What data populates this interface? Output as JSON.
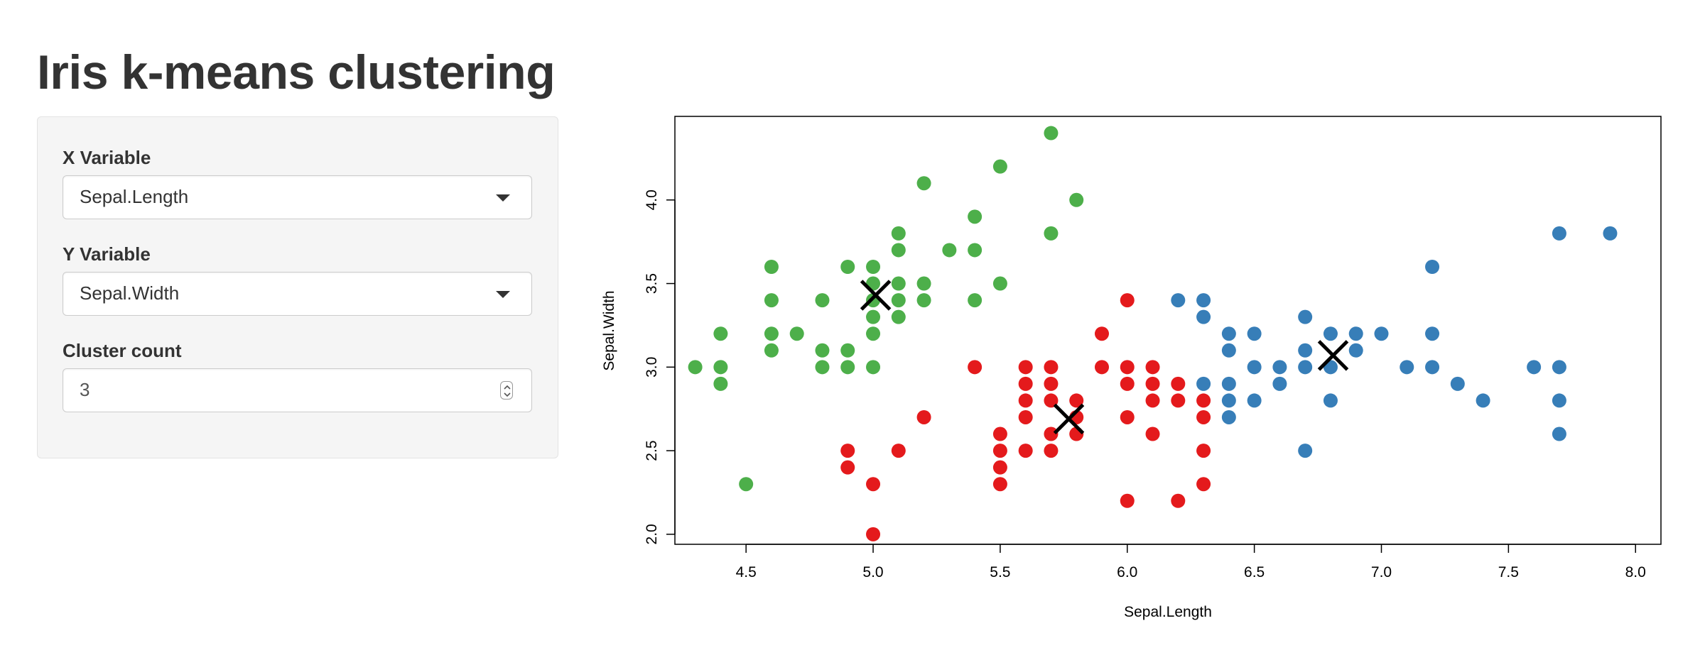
{
  "page": {
    "title": "Iris k-means clustering"
  },
  "sidebar": {
    "x_variable": {
      "label": "X Variable",
      "value": "Sepal.Length"
    },
    "y_variable": {
      "label": "Y Variable",
      "value": "Sepal.Width"
    },
    "cluster_count": {
      "label": "Cluster count",
      "value": "3"
    }
  },
  "colors": {
    "cluster_1": "#E41A1C",
    "cluster_2": "#377EB8",
    "cluster_3": "#4DAF4A",
    "centers": "#000000"
  },
  "icons": {
    "select_caret": "chevron-down-icon",
    "number_spinner": "spinner-icon"
  },
  "chart_data": {
    "type": "scatter",
    "xlabel": "Sepal.Length",
    "ylabel": "Sepal.Width",
    "xlim": [
      4.22,
      8.1
    ],
    "ylim": [
      1.94,
      4.5
    ],
    "x_ticks": [
      "4.5",
      "5.0",
      "5.5",
      "6.0",
      "6.5",
      "7.0",
      "7.5",
      "8.0"
    ],
    "y_ticks": [
      "2.0",
      "2.5",
      "3.0",
      "3.5",
      "4.0"
    ],
    "series": [
      {
        "color": "#E41A1C",
        "points": [
          [
            5.0,
            2.0
          ],
          [
            4.9,
            2.5
          ],
          [
            4.9,
            2.4
          ],
          [
            5.0,
            2.3
          ],
          [
            5.1,
            2.5
          ],
          [
            5.2,
            2.7
          ],
          [
            5.4,
            3.0
          ],
          [
            5.5,
            2.6
          ],
          [
            5.5,
            2.5
          ],
          [
            5.5,
            2.4
          ],
          [
            5.5,
            2.3
          ],
          [
            5.6,
            3.0
          ],
          [
            5.6,
            2.9
          ],
          [
            5.6,
            2.8
          ],
          [
            5.6,
            2.7
          ],
          [
            5.6,
            2.5
          ],
          [
            5.7,
            3.0
          ],
          [
            5.7,
            2.9
          ],
          [
            5.7,
            2.8
          ],
          [
            5.7,
            2.6
          ],
          [
            5.7,
            2.5
          ],
          [
            5.8,
            2.8
          ],
          [
            5.8,
            2.7
          ],
          [
            5.8,
            2.6
          ],
          [
            5.9,
            3.2
          ],
          [
            5.9,
            3.0
          ],
          [
            6.0,
            3.4
          ],
          [
            6.0,
            3.0
          ],
          [
            6.0,
            2.9
          ],
          [
            6.0,
            2.7
          ],
          [
            6.0,
            2.2
          ],
          [
            6.1,
            3.0
          ],
          [
            6.1,
            2.9
          ],
          [
            6.1,
            2.8
          ],
          [
            6.1,
            2.6
          ],
          [
            6.2,
            2.9
          ],
          [
            6.2,
            2.8
          ],
          [
            6.2,
            2.2
          ],
          [
            6.3,
            2.8
          ],
          [
            6.3,
            2.7
          ],
          [
            6.3,
            2.5
          ],
          [
            6.3,
            2.3
          ]
        ]
      },
      {
        "color": "#377EB8",
        "points": [
          [
            6.2,
            3.4
          ],
          [
            6.3,
            3.4
          ],
          [
            6.3,
            3.3
          ],
          [
            6.3,
            2.9
          ],
          [
            6.4,
            3.2
          ],
          [
            6.4,
            3.1
          ],
          [
            6.4,
            2.9
          ],
          [
            6.4,
            2.8
          ],
          [
            6.4,
            2.7
          ],
          [
            6.5,
            3.2
          ],
          [
            6.5,
            3.0
          ],
          [
            6.5,
            2.8
          ],
          [
            6.6,
            3.0
          ],
          [
            6.6,
            2.9
          ],
          [
            6.7,
            3.3
          ],
          [
            6.7,
            3.1
          ],
          [
            6.7,
            3.0
          ],
          [
            6.7,
            2.5
          ],
          [
            6.8,
            3.2
          ],
          [
            6.8,
            3.0
          ],
          [
            6.8,
            2.8
          ],
          [
            6.9,
            3.2
          ],
          [
            6.9,
            3.1
          ],
          [
            7.0,
            3.2
          ],
          [
            7.1,
            3.0
          ],
          [
            7.2,
            3.6
          ],
          [
            7.2,
            3.2
          ],
          [
            7.2,
            3.0
          ],
          [
            7.3,
            2.9
          ],
          [
            7.4,
            2.8
          ],
          [
            7.6,
            3.0
          ],
          [
            7.7,
            3.8
          ],
          [
            7.7,
            3.0
          ],
          [
            7.7,
            2.8
          ],
          [
            7.7,
            2.6
          ],
          [
            7.9,
            3.8
          ]
        ]
      },
      {
        "color": "#4DAF4A",
        "points": [
          [
            4.3,
            3.0
          ],
          [
            4.4,
            3.2
          ],
          [
            4.4,
            3.0
          ],
          [
            4.4,
            2.9
          ],
          [
            4.5,
            2.3
          ],
          [
            4.6,
            3.6
          ],
          [
            4.6,
            3.4
          ],
          [
            4.6,
            3.2
          ],
          [
            4.6,
            3.1
          ],
          [
            4.7,
            3.2
          ],
          [
            4.8,
            3.4
          ],
          [
            4.8,
            3.1
          ],
          [
            4.8,
            3.0
          ],
          [
            4.9,
            3.6
          ],
          [
            4.9,
            3.1
          ],
          [
            4.9,
            3.0
          ],
          [
            5.0,
            3.6
          ],
          [
            5.0,
            3.5
          ],
          [
            5.0,
            3.4
          ],
          [
            5.0,
            3.3
          ],
          [
            5.0,
            3.2
          ],
          [
            5.0,
            3.0
          ],
          [
            5.1,
            3.8
          ],
          [
            5.1,
            3.7
          ],
          [
            5.1,
            3.5
          ],
          [
            5.1,
            3.4
          ],
          [
            5.1,
            3.3
          ],
          [
            5.2,
            4.1
          ],
          [
            5.2,
            3.5
          ],
          [
            5.2,
            3.4
          ],
          [
            5.3,
            3.7
          ],
          [
            5.4,
            3.9
          ],
          [
            5.4,
            3.7
          ],
          [
            5.4,
            3.4
          ],
          [
            5.5,
            4.2
          ],
          [
            5.5,
            3.5
          ],
          [
            5.7,
            4.4
          ],
          [
            5.7,
            3.8
          ],
          [
            5.8,
            4.0
          ]
        ]
      }
    ],
    "centers": [
      [
        5.77,
        2.69
      ],
      [
        6.81,
        3.07
      ],
      [
        5.01,
        3.43
      ]
    ]
  }
}
